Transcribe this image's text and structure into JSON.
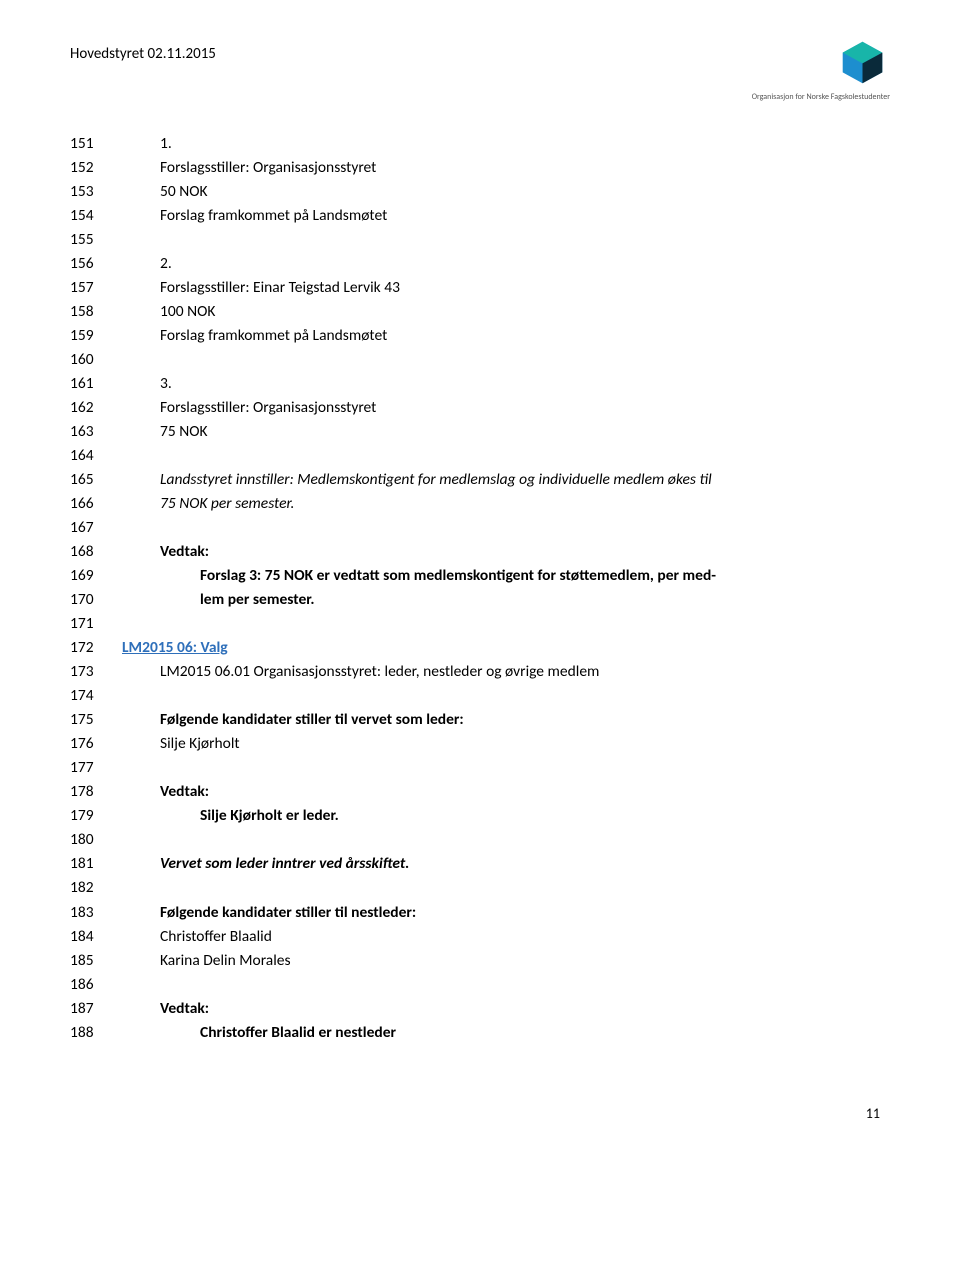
{
  "header": {
    "title": "Hovedstyret 02.11.2015",
    "logo_caption": "Organisasjon for Norske Fagskolestudenter",
    "logo_colors": {
      "blue": "#1d8ecf",
      "teal": "#18b5a9",
      "dark": "#0a2a3a"
    }
  },
  "page_number": "11",
  "lines": [
    {
      "n": "151",
      "indent": 1,
      "style": "",
      "text": "1."
    },
    {
      "n": "152",
      "indent": 1,
      "style": "",
      "text": "Forslagsstiller: Organisasjonsstyret"
    },
    {
      "n": "153",
      "indent": 1,
      "style": "",
      "text": "50 NOK"
    },
    {
      "n": "154",
      "indent": 1,
      "style": "",
      "text": "Forslag framkommet på Landsmøtet"
    },
    {
      "n": "155",
      "indent": 1,
      "style": "",
      "text": ""
    },
    {
      "n": "156",
      "indent": 1,
      "style": "",
      "text": "2."
    },
    {
      "n": "157",
      "indent": 1,
      "style": "",
      "text": "Forslagsstiller: Einar Teigstad Lervik 43"
    },
    {
      "n": "158",
      "indent": 1,
      "style": "",
      "text": "100 NOK"
    },
    {
      "n": "159",
      "indent": 1,
      "style": "",
      "text": "Forslag framkommet på Landsmøtet"
    },
    {
      "n": "160",
      "indent": 1,
      "style": "",
      "text": ""
    },
    {
      "n": "161",
      "indent": 1,
      "style": "",
      "text": "3."
    },
    {
      "n": "162",
      "indent": 1,
      "style": "",
      "text": "Forslagsstiller: Organisasjonsstyret"
    },
    {
      "n": "163",
      "indent": 1,
      "style": "",
      "text": "75 NOK"
    },
    {
      "n": "164",
      "indent": 1,
      "style": "",
      "text": ""
    },
    {
      "n": "165",
      "indent": 1,
      "style": "italic",
      "text": "Landsstyret innstiller: Medlemskontigent for medlemslag og individuelle medlem økes til"
    },
    {
      "n": "166",
      "indent": 1,
      "style": "italic",
      "text": "75 NOK per semester."
    },
    {
      "n": "167",
      "indent": 1,
      "style": "",
      "text": ""
    },
    {
      "n": "168",
      "indent": 1,
      "style": "bold",
      "text": "Vedtak:"
    },
    {
      "n": "169",
      "indent": 2,
      "style": "bold",
      "text": "Forslag 3: 75 NOK er vedtatt som medlemskontigent for støttemedlem, per med-"
    },
    {
      "n": "170",
      "indent": 2,
      "style": "bold",
      "text": "lem per semester."
    },
    {
      "n": "171",
      "indent": 1,
      "style": "",
      "text": ""
    },
    {
      "n": "172",
      "indent": 0,
      "style": "link",
      "text": "LM2015 06: Valg"
    },
    {
      "n": "173",
      "indent": 1,
      "style": "",
      "text": "LM2015 06.01 Organisasjonsstyret: leder, nestleder og øvrige medlem"
    },
    {
      "n": "174",
      "indent": 1,
      "style": "",
      "text": ""
    },
    {
      "n": "175",
      "indent": 1,
      "style": "bold",
      "text": "Følgende kandidater stiller til vervet som leder:"
    },
    {
      "n": "176",
      "indent": 1,
      "style": "",
      "text": "Silje Kjørholt"
    },
    {
      "n": "177",
      "indent": 1,
      "style": "",
      "text": ""
    },
    {
      "n": "178",
      "indent": 1,
      "style": "bold",
      "text": "Vedtak:"
    },
    {
      "n": "179",
      "indent": 2,
      "style": "bold",
      "text": "Silje Kjørholt er leder."
    },
    {
      "n": "180",
      "indent": 1,
      "style": "",
      "text": ""
    },
    {
      "n": "181",
      "indent": 1,
      "style": "bolditalic",
      "text": "Vervet som leder inntrer ved årsskiftet."
    },
    {
      "n": "182",
      "indent": 1,
      "style": "",
      "text": ""
    },
    {
      "n": "183",
      "indent": 1,
      "style": "bold",
      "text": "Følgende kandidater stiller til nestleder:"
    },
    {
      "n": "184",
      "indent": 1,
      "style": "",
      "text": "Christoffer Blaalid"
    },
    {
      "n": "185",
      "indent": 1,
      "style": "",
      "text": "Karina Delin Morales"
    },
    {
      "n": "186",
      "indent": 1,
      "style": "",
      "text": ""
    },
    {
      "n": "187",
      "indent": 1,
      "style": "bold",
      "text": "Vedtak:"
    },
    {
      "n": "188",
      "indent": 2,
      "style": "bold",
      "text": "Christoffer Blaalid er nestleder"
    }
  ]
}
